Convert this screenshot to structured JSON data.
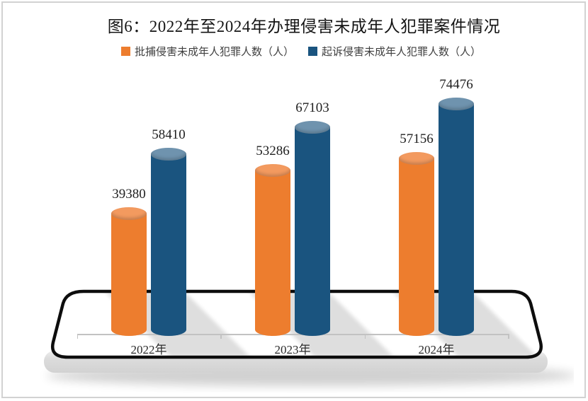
{
  "figure": {
    "background": "#ffffff",
    "frame_color": "#d2d2d2"
  },
  "chart_data": {
    "type": "bar",
    "style": "3d-cylinder-on-rounded-platform",
    "title": "图6：2022年至2024年办理侵害未成年人犯罪案件情况",
    "categories": [
      "2022年",
      "2023年",
      "2024年"
    ],
    "series": [
      {
        "name": "批捕侵害未成年人犯罪人数（人）",
        "color": "#ED7D2E",
        "top_color": "#F39A5F",
        "values": [
          39380,
          53286,
          57156
        ]
      },
      {
        "name": "起诉侵害未成年人犯罪人数（人）",
        "color": "#1A547F",
        "top_color": "#6F93AE",
        "values": [
          58410,
          67103,
          74476
        ]
      }
    ],
    "value_labels_shown": true,
    "legend_position": "top",
    "xlabel": "",
    "ylabel": "",
    "ylim": [
      0,
      80000
    ],
    "grid": false,
    "axis_color": "#c2c2c2"
  }
}
